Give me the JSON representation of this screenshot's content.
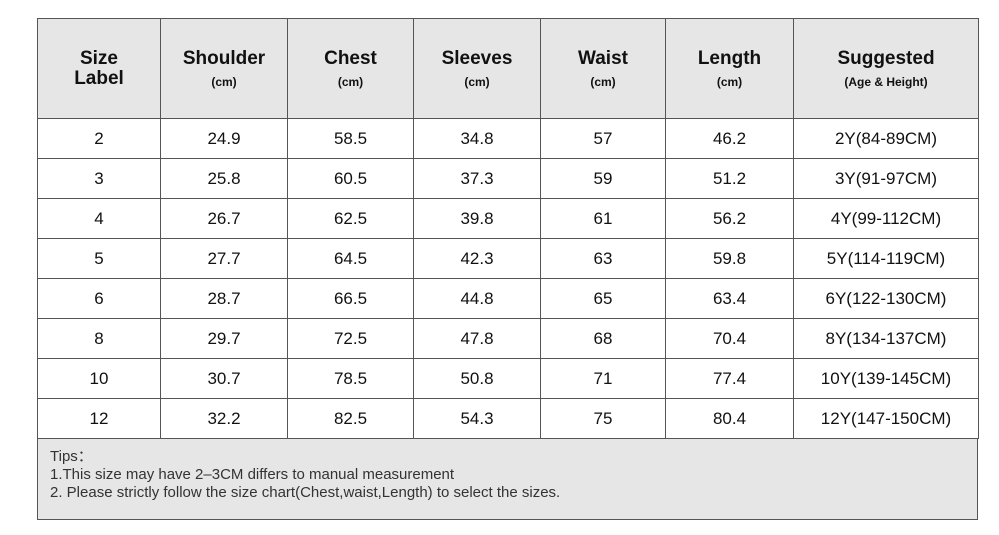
{
  "table": {
    "header": [
      {
        "title": "Size Label"
      },
      {
        "title": "Shoulder",
        "unit": "(cm)"
      },
      {
        "title": "Chest",
        "unit": "(cm)"
      },
      {
        "title": "Sleeves",
        "unit": "(cm)"
      },
      {
        "title": "Waist",
        "unit": "(cm)"
      },
      {
        "title": "Length",
        "unit": "(cm)"
      },
      {
        "title": "Suggested",
        "unit": "(Age & Height)"
      }
    ],
    "rows": [
      [
        "2",
        "24.9",
        "58.5",
        "34.8",
        "57",
        "46.2",
        "2Y(84-89CM)"
      ],
      [
        "3",
        "25.8",
        "60.5",
        "37.3",
        "59",
        "51.2",
        "3Y(91-97CM)"
      ],
      [
        "4",
        "26.7",
        "62.5",
        "39.8",
        "61",
        "56.2",
        "4Y(99-112CM)"
      ],
      [
        "5",
        "27.7",
        "64.5",
        "42.3",
        "63",
        "59.8",
        "5Y(114-119CM)"
      ],
      [
        "6",
        "28.7",
        "66.5",
        "44.8",
        "65",
        "63.4",
        "6Y(122-130CM)"
      ],
      [
        "8",
        "29.7",
        "72.5",
        "47.8",
        "68",
        "70.4",
        "8Y(134-137CM)"
      ],
      [
        "10",
        "30.7",
        "78.5",
        "50.8",
        "71",
        "77.4",
        "10Y(139-145CM)"
      ],
      [
        "12",
        "32.2",
        "82.5",
        "54.3",
        "75",
        "80.4",
        "12Y(147-150CM)"
      ]
    ],
    "tips": [
      "Tips：",
      "1.This size may have 2–3CM differs to manual measurement",
      "2. Please strictly follow the size chart(Chest,waist,Length) to select the sizes."
    ]
  }
}
